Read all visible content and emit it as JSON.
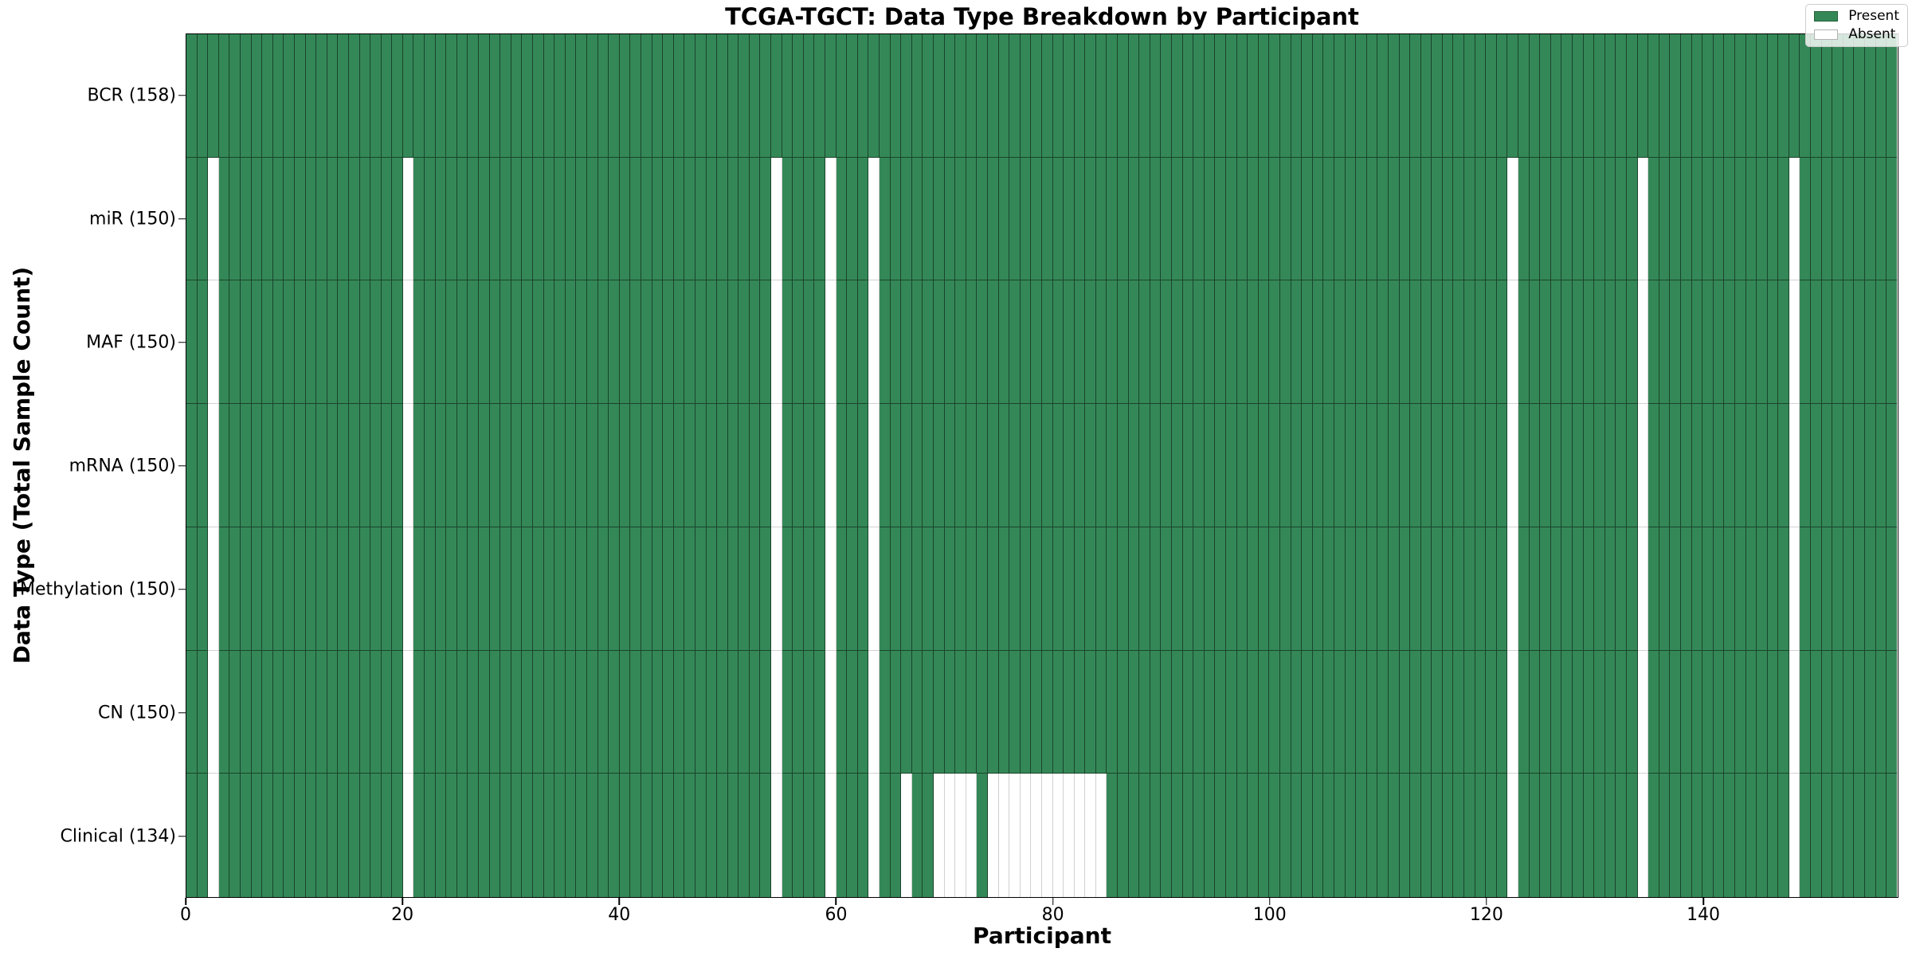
{
  "chart_data": {
    "type": "heatmap",
    "title": "TCGA-TGCT: Data Type Breakdown by Participant",
    "xlabel": "Participant",
    "ylabel": "Data Type (Total Sample Count)",
    "n_participants": 158,
    "xlim": [
      0,
      158
    ],
    "x_ticks": [
      0,
      20,
      40,
      60,
      80,
      100,
      120,
      140
    ],
    "grid": false,
    "legend_position": "upper right",
    "colors": {
      "present": "#348857",
      "absent": "#ffffff"
    },
    "legend": [
      {
        "label": "Present",
        "color": "#348857"
      },
      {
        "label": "Absent",
        "color": "#ffffff"
      }
    ],
    "rows": [
      {
        "key": "bcr",
        "label": "BCR (158)",
        "data_type": "BCR",
        "count": 158,
        "absent": []
      },
      {
        "key": "mir",
        "label": "miR (150)",
        "data_type": "miR",
        "count": 150,
        "absent": [
          2,
          20,
          54,
          59,
          63,
          122,
          134,
          148
        ]
      },
      {
        "key": "maf",
        "label": "MAF (150)",
        "data_type": "MAF",
        "count": 150,
        "absent": [
          2,
          20,
          54,
          59,
          63,
          122,
          134,
          148
        ]
      },
      {
        "key": "mrna",
        "label": "mRNA (150)",
        "data_type": "mRNA",
        "count": 150,
        "absent": [
          2,
          20,
          54,
          59,
          63,
          122,
          134,
          148
        ]
      },
      {
        "key": "methylation",
        "label": "Methylation (150)",
        "data_type": "Methylation",
        "count": 150,
        "absent": [
          2,
          20,
          54,
          59,
          63,
          122,
          134,
          148
        ]
      },
      {
        "key": "cn",
        "label": "CN (150)",
        "data_type": "CN",
        "count": 150,
        "absent": [
          2,
          20,
          54,
          59,
          63,
          122,
          134,
          148
        ]
      },
      {
        "key": "clinical",
        "label": "Clinical (134)",
        "data_type": "Clinical",
        "count": 134,
        "absent": [
          2,
          20,
          54,
          59,
          63,
          66,
          69,
          70,
          71,
          72,
          74,
          75,
          76,
          77,
          78,
          79,
          80,
          81,
          82,
          83,
          84,
          122,
          134,
          148
        ]
      }
    ]
  }
}
